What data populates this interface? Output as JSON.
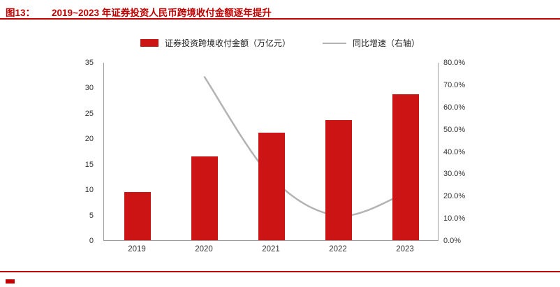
{
  "header": {
    "figure_label": "图13：",
    "title": "2019~2023 年证券投资人民币跨境收付金额逐年提升"
  },
  "legend": {
    "bar_label": "证券投资跨境收付金额（万亿元）",
    "line_label": "同比增速（右轴）"
  },
  "colors": {
    "accent_red": "#C00000",
    "bar_red": "#CC1414",
    "line_gray": "#B3B3B3",
    "axis_gray": "#9B9B9B"
  },
  "chart_data": {
    "type": "bar",
    "title": "2019~2023 年证券投资人民币跨境收付金额逐年提升",
    "categories": [
      "2019",
      "2020",
      "2021",
      "2022",
      "2023"
    ],
    "series": [
      {
        "name": "证券投资跨境收付金额（万亿元）",
        "type": "bar",
        "axis": "left",
        "values": [
          9.5,
          16.5,
          21.2,
          23.6,
          28.7
        ]
      },
      {
        "name": "同比增速（右轴）",
        "type": "line",
        "axis": "right",
        "values": [
          null,
          73.6,
          28.5,
          11.3,
          21.6
        ]
      }
    ],
    "left_axis": {
      "min": 0,
      "max": 35,
      "ticks": [
        0,
        5,
        10,
        15,
        20,
        25,
        30,
        35
      ]
    },
    "right_axis": {
      "min": 0,
      "max": 80,
      "ticks": [
        "0.0%",
        "10.0%",
        "20.0%",
        "30.0%",
        "40.0%",
        "50.0%",
        "60.0%",
        "70.0%",
        "80.0%"
      ]
    },
    "grid": false,
    "legend_position": "top"
  }
}
